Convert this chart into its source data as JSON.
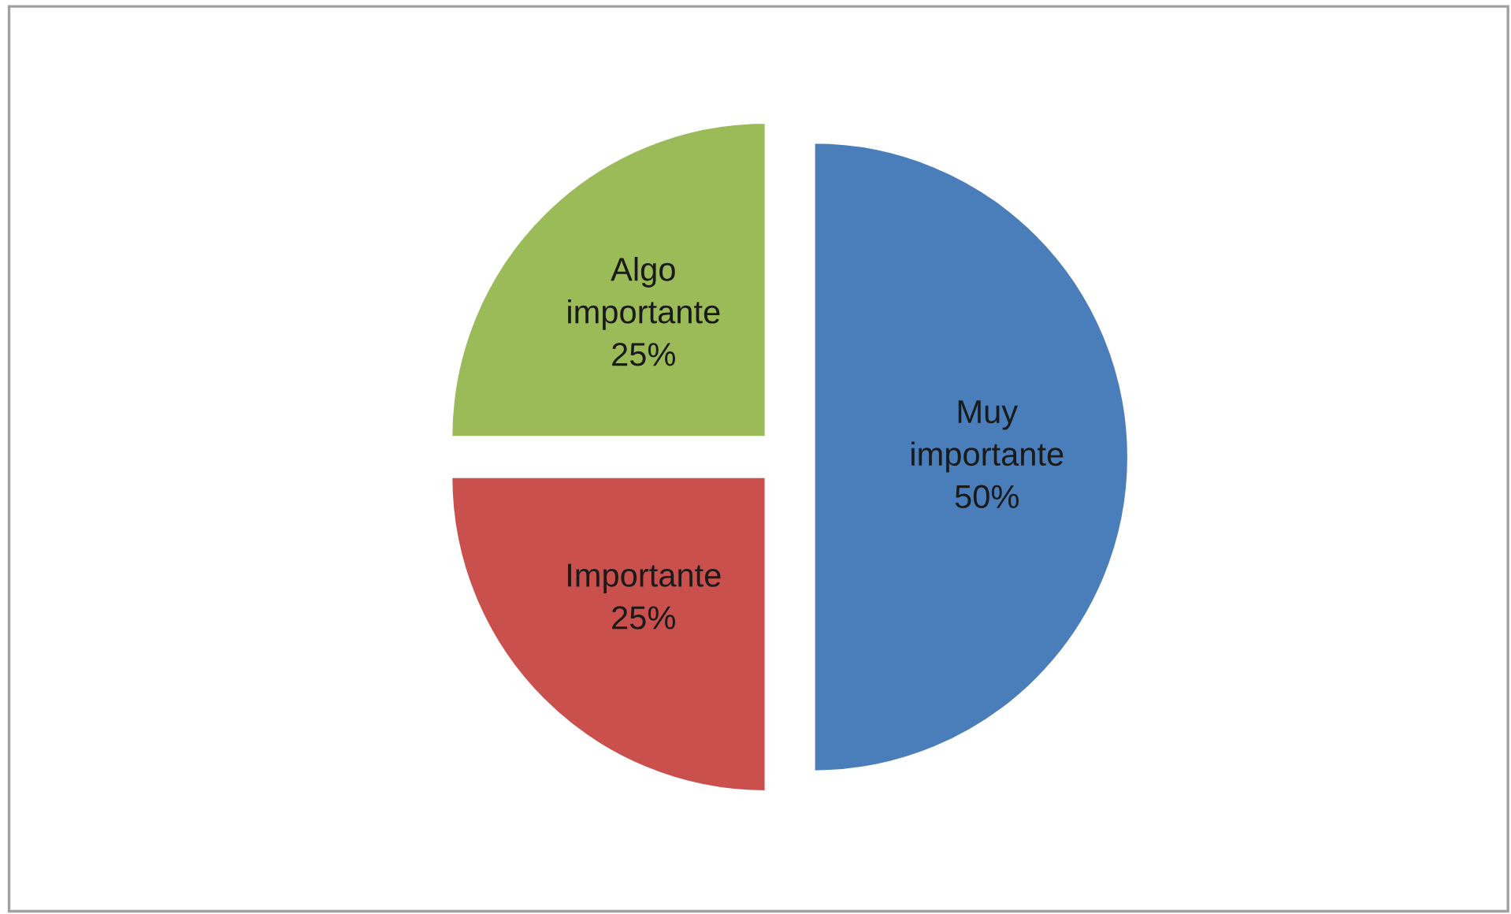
{
  "chart_data": {
    "type": "pie",
    "categories": [
      "Muy importante",
      "Importante",
      "Algo importante"
    ],
    "values": [
      50,
      25,
      25
    ],
    "value_labels": [
      "50%",
      "25%",
      "25%"
    ],
    "colors": [
      "#4a7ebb",
      "#c9504d",
      "#9bbb59"
    ],
    "legend": false
  }
}
